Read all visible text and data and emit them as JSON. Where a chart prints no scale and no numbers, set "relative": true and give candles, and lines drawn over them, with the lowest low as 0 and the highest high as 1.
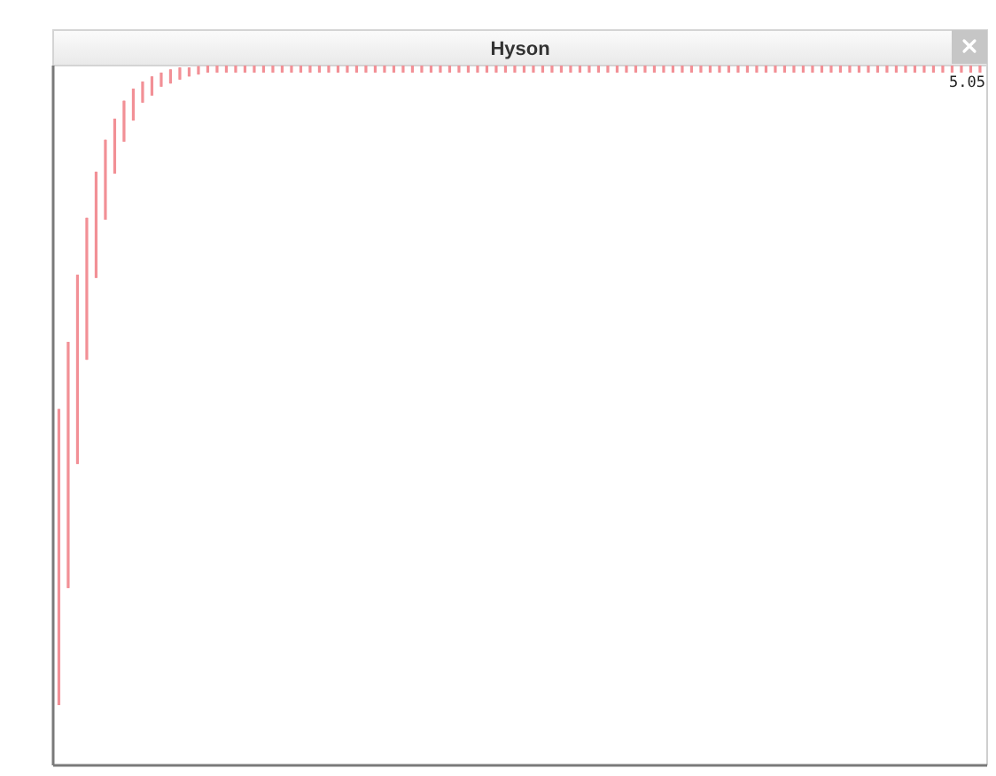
{
  "chart_data": {
    "type": "candlestick",
    "title": "Hyson",
    "relative": true,
    "color": "#f29096",
    "categories": [
      null,
      null,
      null,
      null,
      null,
      null,
      null,
      null,
      null,
      null,
      null,
      null,
      null,
      null,
      null,
      null,
      null,
      null,
      null,
      null,
      null,
      null,
      null,
      null,
      null,
      null,
      null,
      null,
      null,
      null,
      null,
      null,
      null,
      null,
      null,
      null,
      null,
      null,
      null,
      null,
      null,
      null,
      null,
      null,
      null,
      null,
      null,
      null,
      null,
      null,
      null,
      null,
      null,
      null,
      null,
      null,
      null,
      null,
      null,
      null,
      null,
      null,
      null,
      null,
      null,
      null,
      null,
      null,
      null,
      null,
      null,
      null,
      null,
      null,
      null,
      null,
      null,
      null,
      null,
      null,
      null,
      null,
      null,
      null,
      null,
      null,
      null,
      null,
      null,
      null,
      null,
      null,
      null,
      null,
      null,
      null,
      null,
      null,
      null,
      null
    ],
    "ohlc": [
      [
        0,
        0.463,
        0,
        0.463
      ],
      [
        0.183,
        0.568,
        0.183,
        0.568
      ],
      [
        0.377,
        0.673,
        0.377,
        0.673
      ],
      [
        0.54,
        0.762,
        0.54,
        0.762
      ],
      [
        0.668,
        0.834,
        0.668,
        0.834
      ],
      [
        0.759,
        0.884,
        0.759,
        0.884
      ],
      [
        0.831,
        0.917,
        0.831,
        0.917
      ],
      [
        0.881,
        0.945,
        0.881,
        0.945
      ],
      [
        0.914,
        0.964,
        0.914,
        0.964
      ],
      [
        0.942,
        0.975,
        0.942,
        0.975
      ],
      [
        0.953,
        0.983,
        0.953,
        0.983
      ],
      [
        0.967,
        0.989,
        0.967,
        0.989
      ],
      [
        0.972,
        0.994,
        0.972,
        0.994
      ],
      [
        0.978,
        0.997,
        0.978,
        0.997
      ],
      [
        0.983,
        0.997,
        0.983,
        0.997
      ],
      [
        0.986,
        0.999,
        0.986,
        0.999
      ],
      [
        0.989,
        1,
        0.989,
        1
      ],
      [
        0.989,
        1,
        0.989,
        1
      ],
      [
        0.989,
        1,
        0.989,
        1
      ],
      [
        0.989,
        1,
        0.989,
        1
      ],
      [
        0.989,
        1,
        0.989,
        1
      ],
      [
        0.989,
        1,
        0.989,
        1
      ],
      [
        0.989,
        1,
        0.989,
        1
      ],
      [
        0.989,
        1,
        0.989,
        1
      ],
      [
        0.989,
        1,
        0.989,
        1
      ],
      [
        0.989,
        1,
        0.989,
        1
      ],
      [
        0.989,
        1,
        0.989,
        1
      ],
      [
        0.989,
        1,
        0.989,
        1
      ],
      [
        0.989,
        1,
        0.989,
        1
      ],
      [
        0.989,
        1,
        0.989,
        1
      ],
      [
        0.989,
        1,
        0.989,
        1
      ],
      [
        0.989,
        1,
        0.989,
        1
      ],
      [
        0.989,
        1,
        0.989,
        1
      ],
      [
        0.989,
        1,
        0.989,
        1
      ],
      [
        0.989,
        1,
        0.989,
        1
      ],
      [
        0.989,
        1,
        0.989,
        1
      ],
      [
        0.989,
        1,
        0.989,
        1
      ],
      [
        0.989,
        1,
        0.989,
        1
      ],
      [
        0.989,
        1,
        0.989,
        1
      ],
      [
        0.989,
        1,
        0.989,
        1
      ],
      [
        0.989,
        1,
        0.989,
        1
      ],
      [
        0.989,
        1,
        0.989,
        1
      ],
      [
        0.989,
        1,
        0.989,
        1
      ],
      [
        0.989,
        1,
        0.989,
        1
      ],
      [
        0.989,
        1,
        0.989,
        1
      ],
      [
        0.989,
        1,
        0.989,
        1
      ],
      [
        0.989,
        1,
        0.989,
        1
      ],
      [
        0.989,
        1,
        0.989,
        1
      ],
      [
        0.989,
        1,
        0.989,
        1
      ],
      [
        0.989,
        1,
        0.989,
        1
      ],
      [
        0.989,
        1,
        0.989,
        1
      ],
      [
        0.989,
        1,
        0.989,
        1
      ],
      [
        0.989,
        1,
        0.989,
        1
      ],
      [
        0.989,
        1,
        0.989,
        1
      ],
      [
        0.989,
        1,
        0.989,
        1
      ],
      [
        0.989,
        1,
        0.989,
        1
      ],
      [
        0.989,
        1,
        0.989,
        1
      ],
      [
        0.989,
        1,
        0.989,
        1
      ],
      [
        0.989,
        1,
        0.989,
        1
      ],
      [
        0.989,
        1,
        0.989,
        1
      ],
      [
        0.989,
        1,
        0.989,
        1
      ],
      [
        0.989,
        1,
        0.989,
        1
      ],
      [
        0.989,
        1,
        0.989,
        1
      ],
      [
        0.989,
        1,
        0.989,
        1
      ],
      [
        0.989,
        1,
        0.989,
        1
      ],
      [
        0.989,
        1,
        0.989,
        1
      ],
      [
        0.989,
        1,
        0.989,
        1
      ],
      [
        0.989,
        1,
        0.989,
        1
      ],
      [
        0.989,
        1,
        0.989,
        1
      ],
      [
        0.989,
        1,
        0.989,
        1
      ],
      [
        0.989,
        1,
        0.989,
        1
      ],
      [
        0.989,
        1,
        0.989,
        1
      ],
      [
        0.989,
        1,
        0.989,
        1
      ],
      [
        0.989,
        1,
        0.989,
        1
      ],
      [
        0.989,
        1,
        0.989,
        1
      ],
      [
        0.989,
        1,
        0.989,
        1
      ],
      [
        0.989,
        1,
        0.989,
        1
      ],
      [
        0.989,
        1,
        0.989,
        1
      ],
      [
        0.989,
        1,
        0.989,
        1
      ],
      [
        0.989,
        1,
        0.989,
        1
      ],
      [
        0.989,
        1,
        0.989,
        1
      ],
      [
        0.989,
        1,
        0.989,
        1
      ],
      [
        0.989,
        1,
        0.989,
        1
      ],
      [
        0.989,
        1,
        0.989,
        1
      ],
      [
        0.989,
        1,
        0.989,
        1
      ],
      [
        0.989,
        1,
        0.989,
        1
      ],
      [
        0.989,
        1,
        0.989,
        1
      ],
      [
        0.989,
        1,
        0.989,
        1
      ],
      [
        0.989,
        1,
        0.989,
        1
      ],
      [
        0.989,
        1,
        0.989,
        1
      ],
      [
        0.989,
        1,
        0.989,
        1
      ],
      [
        0.989,
        1,
        0.989,
        1
      ],
      [
        0.989,
        1,
        0.989,
        1
      ],
      [
        0.989,
        1,
        0.989,
        1
      ],
      [
        0.989,
        1,
        0.989,
        1
      ],
      [
        0.989,
        1,
        0.989,
        1
      ],
      [
        0.989,
        1,
        0.989,
        1
      ],
      [
        0.989,
        1,
        0.989,
        1
      ],
      [
        0.989,
        1,
        0.989,
        1
      ],
      [
        0.989,
        1,
        0.989,
        1
      ]
    ],
    "annotations": [
      "5.05"
    ]
  }
}
